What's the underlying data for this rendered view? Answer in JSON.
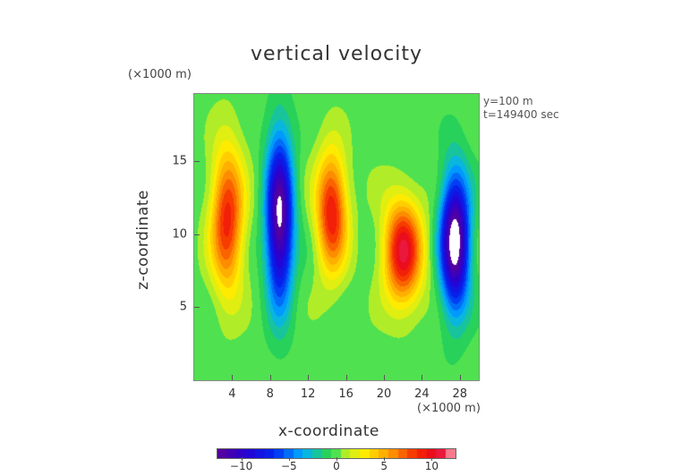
{
  "chart_data": {
    "type": "heatmap",
    "title": "vertical velocity",
    "xlabel": "x-coordinate",
    "ylabel": "z-coordinate",
    "x_unit": "(×1000 m)",
    "y_unit": "(×1000 m)",
    "annotations": [
      "y=100 m",
      "t=149400 sec"
    ],
    "xlim": [
      0,
      30
    ],
    "ylim": [
      0,
      19.6
    ],
    "x_ticks": [
      4,
      8,
      12,
      16,
      20,
      24,
      28
    ],
    "y_ticks": [
      5,
      10,
      15
    ],
    "colorbar": {
      "ticks": [
        -10,
        -5,
        0,
        5,
        10
      ],
      "range": [
        -12.5,
        12.5
      ],
      "levels": 25
    },
    "features": [
      {
        "x": 3.5,
        "z": 11.0,
        "sx": 1.7,
        "sz": 4.8,
        "value": 9,
        "label": "updraft"
      },
      {
        "x": 9.0,
        "z": 11.0,
        "sx": 1.4,
        "sz": 5.5,
        "value": -13,
        "label": "downdraft"
      },
      {
        "x": 14.5,
        "z": 11.5,
        "sx": 1.6,
        "sz": 4.0,
        "value": 9.5,
        "label": "updraft"
      },
      {
        "x": 22.0,
        "z": 8.8,
        "sx": 2.0,
        "sz": 3.5,
        "value": 10.5,
        "label": "updraft"
      },
      {
        "x": 27.5,
        "z": 9.5,
        "sx": 1.5,
        "sz": 4.5,
        "value": -14,
        "label": "downdraft"
      }
    ]
  }
}
